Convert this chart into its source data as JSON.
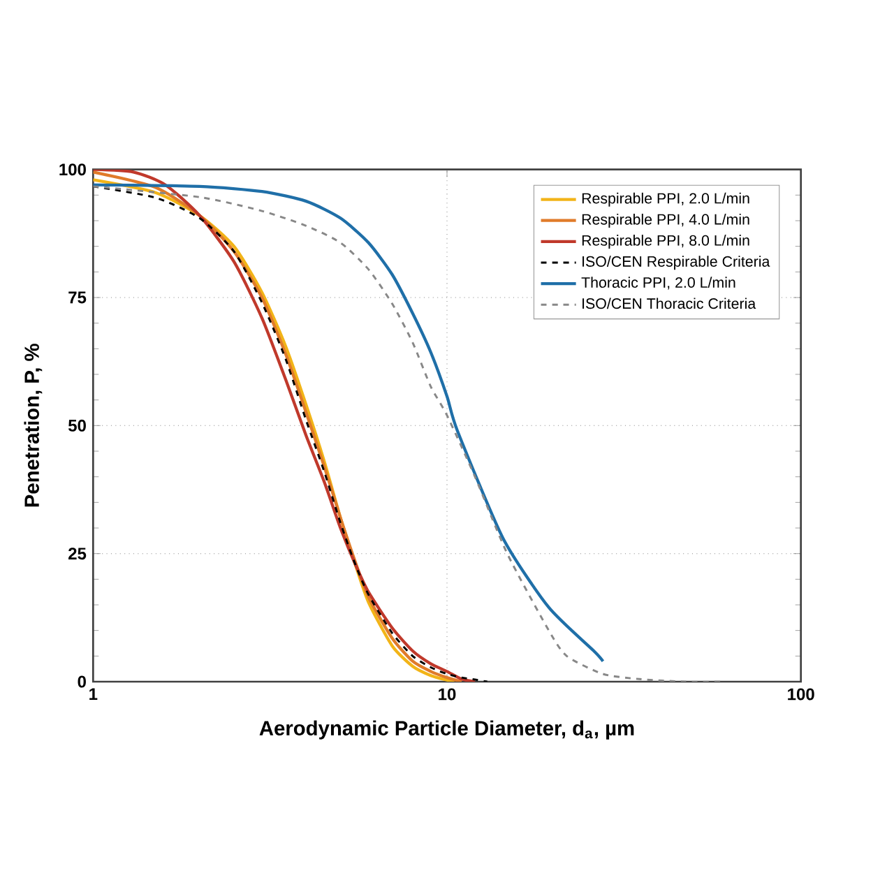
{
  "chart_data": {
    "type": "line",
    "xlabel": "Aerodynamic Particle Diameter, d$_{a}$, µm",
    "ylabel": "Penetration, P, %",
    "log": "x",
    "xlim": [
      1,
      100
    ],
    "xticks": [
      1,
      10,
      100
    ],
    "ylim": [
      0,
      100
    ],
    "yticks": [
      0,
      25,
      50,
      75,
      100
    ],
    "grid": true,
    "legend": "top right",
    "marker": "none",
    "series": [
      {
        "name": "Respirable PPI, 2.0 L/min",
        "color": "#f2b418",
        "line_style": "solid",
        "x": [
          1,
          1.5,
          2,
          2.5,
          3,
          3.5,
          4,
          4.5,
          5,
          5.5,
          6,
          7,
          8,
          9,
          10,
          10.5
        ],
        "values": [
          98,
          95.5,
          91,
          85,
          76,
          65.5,
          54,
          43,
          32,
          23,
          15.5,
          7,
          3,
          1.2,
          0.3,
          0
        ]
      },
      {
        "name": "Respirable PPI, 4.0 L/min",
        "color": "#e07b2a",
        "line_style": "solid",
        "x": [
          1,
          1.5,
          2,
          2.5,
          3,
          3.5,
          4,
          4.5,
          5,
          5.5,
          6,
          7,
          8,
          9,
          10,
          11
        ],
        "values": [
          99.5,
          96.5,
          91,
          84,
          75,
          64,
          52.5,
          42,
          32,
          23.5,
          16.5,
          8.5,
          4,
          2,
          0.8,
          0
        ]
      },
      {
        "name": "Respirable PPI, 8.0 L/min",
        "color": "#c0392b",
        "line_style": "solid",
        "x": [
          1,
          1.3,
          1.6,
          2,
          2.5,
          3,
          3.5,
          4,
          4.5,
          5,
          5.5,
          6,
          7,
          8,
          9,
          10,
          11,
          12
        ],
        "values": [
          100,
          99.5,
          97,
          91,
          82,
          71,
          59,
          48,
          39,
          30,
          23,
          17.5,
          10.5,
          6,
          3.5,
          2,
          0.5,
          0
        ]
      },
      {
        "name": "ISO/CEN Respirable Criteria",
        "color": "#000000",
        "line_style": "dashed",
        "x": [
          1,
          1.5,
          2,
          2.5,
          3,
          3.5,
          4,
          4.5,
          5,
          5.5,
          6,
          7,
          8,
          9,
          10,
          11,
          12,
          13
        ],
        "values": [
          96.7,
          94.5,
          90.5,
          84,
          74,
          63,
          51,
          41,
          31,
          23,
          17,
          9.5,
          5,
          2.8,
          1.5,
          0.8,
          0.4,
          0
        ]
      },
      {
        "name": "Thoracic PPI, 2.0 L/min",
        "color": "#1f6fa8",
        "line_style": "solid",
        "x": [
          1,
          2,
          3,
          4,
          5,
          6,
          7,
          8,
          9,
          10,
          10.7,
          14.4,
          19.4,
          26,
          27.6
        ],
        "values": [
          97,
          96.7,
          95.7,
          93.8,
          90.5,
          85.7,
          79.5,
          71.9,
          64.3,
          55.7,
          49,
          28,
          14.5,
          6,
          4
        ]
      },
      {
        "name": "ISO/CEN Thoracic Criteria",
        "color": "#888888",
        "line_style": "dashed",
        "x": [
          1,
          2,
          3,
          4,
          5,
          6,
          7,
          8,
          9,
          10,
          12,
          14.8,
          19.4,
          21.8,
          27.6,
          35,
          47,
          60
        ],
        "values": [
          96.7,
          94.6,
          91.9,
          89,
          85.7,
          80.5,
          73.8,
          66.2,
          57.6,
          52,
          40,
          25,
          10,
          5,
          1.5,
          0.5,
          0,
          0
        ]
      }
    ]
  }
}
